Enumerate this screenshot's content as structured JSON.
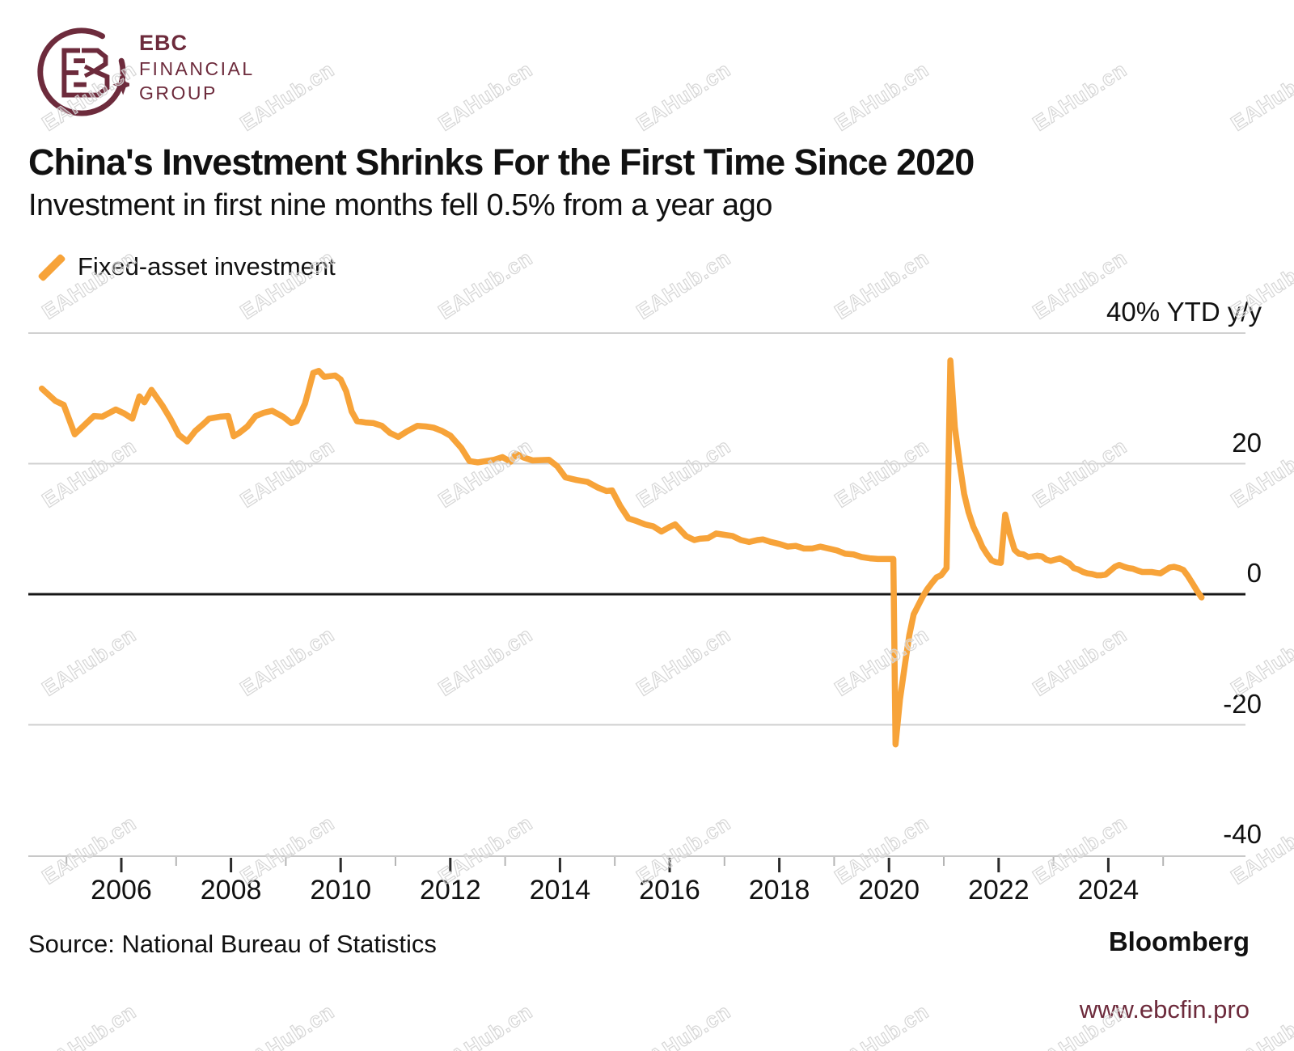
{
  "logo": {
    "line1": "EBC",
    "line2": "FINANCIAL",
    "line3": "GROUP"
  },
  "header": {
    "title": "China's Investment Shrinks For the First Time Since 2020",
    "subtitle": "Investment in first nine months fell 0.5% from a year ago"
  },
  "legend": {
    "label": "Fixed-asset investment"
  },
  "footer": {
    "source": "Source: National Bureau of Statistics",
    "brand": "Bloomberg",
    "website": "www.ebcfin.pro"
  },
  "watermark": {
    "text": "EAHub.cn"
  },
  "colors": {
    "line": "#F7A339",
    "maroon": "#6D2B3C",
    "grid": "#D0D0D0",
    "zero_line": "#161616",
    "axis": "#C8C8C8",
    "tick_major": "#2B2B2B",
    "tick_minor": "#B5B5B5",
    "text": "#111111",
    "watermark": "#D4D4D4"
  },
  "chart_data": {
    "type": "line",
    "title": "China's Investment Shrinks For the First Time Since 2020",
    "subtitle": "Investment in first nine months fell 0.5% from a year ago",
    "ylabel": "% YTD y/y",
    "xlabel": "",
    "x_range": [
      2004.5,
      2025.9
    ],
    "ylim": [
      -40,
      40
    ],
    "grid": "horizontal",
    "legend_position": "top-left",
    "y_ticks": [
      {
        "value": 40,
        "label": "40% YTD y/y"
      },
      {
        "value": 20,
        "label": "20"
      },
      {
        "value": 0,
        "label": "0"
      },
      {
        "value": -20,
        "label": "-20"
      },
      {
        "value": -40,
        "label": "-40"
      }
    ],
    "x_ticks_major": [
      {
        "year": 2006,
        "label": "2006"
      },
      {
        "year": 2008,
        "label": "2008"
      },
      {
        "year": 2010,
        "label": "2010"
      },
      {
        "year": 2012,
        "label": "2012"
      },
      {
        "year": 2014,
        "label": "2014"
      },
      {
        "year": 2016,
        "label": "2016"
      },
      {
        "year": 2018,
        "label": "2018"
      },
      {
        "year": 2020,
        "label": "2020"
      },
      {
        "year": 2022,
        "label": "2022"
      },
      {
        "year": 2024,
        "label": "2024"
      }
    ],
    "x_ticks_minor": [
      2005,
      2007,
      2009,
      2011,
      2013,
      2015,
      2017,
      2019,
      2021,
      2023,
      2025
    ],
    "series": [
      {
        "name": "Fixed-asset investment",
        "color": "#F7A339",
        "points": [
          [
            2004.55,
            31.5
          ],
          [
            2004.8,
            29.6
          ],
          [
            2004.95,
            29.0
          ],
          [
            2005.15,
            24.5
          ],
          [
            2005.5,
            27.3
          ],
          [
            2005.65,
            27.2
          ],
          [
            2005.9,
            28.3
          ],
          [
            2006.05,
            27.7
          ],
          [
            2006.2,
            26.9
          ],
          [
            2006.33,
            30.3
          ],
          [
            2006.42,
            29.4
          ],
          [
            2006.55,
            31.3
          ],
          [
            2006.75,
            28.9
          ],
          [
            2006.9,
            26.8
          ],
          [
            2007.05,
            24.4
          ],
          [
            2007.2,
            23.4
          ],
          [
            2007.35,
            25.0
          ],
          [
            2007.5,
            26.1
          ],
          [
            2007.6,
            26.9
          ],
          [
            2007.8,
            27.2
          ],
          [
            2007.95,
            27.3
          ],
          [
            2008.05,
            24.2
          ],
          [
            2008.15,
            24.7
          ],
          [
            2008.3,
            25.7
          ],
          [
            2008.45,
            27.3
          ],
          [
            2008.6,
            27.8
          ],
          [
            2008.75,
            28.1
          ],
          [
            2008.95,
            27.2
          ],
          [
            2009.1,
            26.2
          ],
          [
            2009.2,
            26.5
          ],
          [
            2009.35,
            29.2
          ],
          [
            2009.5,
            33.9
          ],
          [
            2009.6,
            34.2
          ],
          [
            2009.7,
            33.3
          ],
          [
            2009.8,
            33.4
          ],
          [
            2009.9,
            33.5
          ],
          [
            2010.0,
            32.9
          ],
          [
            2010.1,
            31.1
          ],
          [
            2010.2,
            28.0
          ],
          [
            2010.3,
            26.5
          ],
          [
            2010.45,
            26.3
          ],
          [
            2010.6,
            26.2
          ],
          [
            2010.75,
            25.8
          ],
          [
            2010.9,
            24.7
          ],
          [
            2011.05,
            24.1
          ],
          [
            2011.2,
            24.9
          ],
          [
            2011.4,
            25.8
          ],
          [
            2011.55,
            25.7
          ],
          [
            2011.7,
            25.5
          ],
          [
            2011.85,
            25.0
          ],
          [
            2012.0,
            24.3
          ],
          [
            2012.2,
            22.4
          ],
          [
            2012.35,
            20.4
          ],
          [
            2012.5,
            20.2
          ],
          [
            2012.65,
            20.4
          ],
          [
            2012.8,
            20.6
          ],
          [
            2012.95,
            21.0
          ],
          [
            2013.1,
            20.3
          ],
          [
            2013.2,
            21.5
          ],
          [
            2013.35,
            20.9
          ],
          [
            2013.5,
            20.5
          ],
          [
            2013.8,
            20.6
          ],
          [
            2013.95,
            19.6
          ],
          [
            2014.1,
            17.9
          ],
          [
            2014.3,
            17.5
          ],
          [
            2014.5,
            17.2
          ],
          [
            2014.7,
            16.3
          ],
          [
            2014.85,
            15.8
          ],
          [
            2014.95,
            15.9
          ],
          [
            2015.1,
            13.5
          ],
          [
            2015.25,
            11.6
          ],
          [
            2015.4,
            11.2
          ],
          [
            2015.55,
            10.7
          ],
          [
            2015.7,
            10.4
          ],
          [
            2015.85,
            9.6
          ],
          [
            2016.0,
            10.3
          ],
          [
            2016.1,
            10.7
          ],
          [
            2016.2,
            9.8
          ],
          [
            2016.3,
            8.9
          ],
          [
            2016.45,
            8.3
          ],
          [
            2016.55,
            8.5
          ],
          [
            2016.7,
            8.6
          ],
          [
            2016.85,
            9.3
          ],
          [
            2017.0,
            9.1
          ],
          [
            2017.15,
            8.9
          ],
          [
            2017.3,
            8.3
          ],
          [
            2017.45,
            8.0
          ],
          [
            2017.6,
            8.3
          ],
          [
            2017.7,
            8.4
          ],
          [
            2017.85,
            8.0
          ],
          [
            2018.0,
            7.7
          ],
          [
            2018.15,
            7.3
          ],
          [
            2018.3,
            7.4
          ],
          [
            2018.45,
            7.0
          ],
          [
            2018.6,
            7.0
          ],
          [
            2018.75,
            7.3
          ],
          [
            2018.9,
            7.0
          ],
          [
            2019.05,
            6.7
          ],
          [
            2019.2,
            6.2
          ],
          [
            2019.35,
            6.1
          ],
          [
            2019.5,
            5.7
          ],
          [
            2019.65,
            5.5
          ],
          [
            2019.8,
            5.4
          ],
          [
            2019.97,
            5.4
          ],
          [
            2020.08,
            5.4
          ],
          [
            2020.12,
            -23.0
          ],
          [
            2020.2,
            -16.1
          ],
          [
            2020.3,
            -10.3
          ],
          [
            2020.37,
            -6.3
          ],
          [
            2020.45,
            -3.1
          ],
          [
            2020.54,
            -1.6
          ],
          [
            2020.62,
            -0.3
          ],
          [
            2020.7,
            0.8
          ],
          [
            2020.79,
            1.8
          ],
          [
            2020.87,
            2.6
          ],
          [
            2020.95,
            2.9
          ],
          [
            2021.05,
            4.0
          ],
          [
            2021.12,
            35.8
          ],
          [
            2021.2,
            25.6
          ],
          [
            2021.29,
            19.9
          ],
          [
            2021.37,
            15.4
          ],
          [
            2021.45,
            12.6
          ],
          [
            2021.54,
            10.3
          ],
          [
            2021.62,
            8.9
          ],
          [
            2021.7,
            7.3
          ],
          [
            2021.79,
            6.1
          ],
          [
            2021.87,
            5.2
          ],
          [
            2021.95,
            4.9
          ],
          [
            2022.04,
            4.8
          ],
          [
            2022.12,
            12.2
          ],
          [
            2022.2,
            9.3
          ],
          [
            2022.29,
            6.8
          ],
          [
            2022.37,
            6.2
          ],
          [
            2022.45,
            6.1
          ],
          [
            2022.54,
            5.7
          ],
          [
            2022.62,
            5.8
          ],
          [
            2022.7,
            5.9
          ],
          [
            2022.79,
            5.8
          ],
          [
            2022.87,
            5.3
          ],
          [
            2022.95,
            5.1
          ],
          [
            2023.12,
            5.5
          ],
          [
            2023.2,
            5.1
          ],
          [
            2023.29,
            4.7
          ],
          [
            2023.37,
            4.0
          ],
          [
            2023.45,
            3.8
          ],
          [
            2023.54,
            3.4
          ],
          [
            2023.62,
            3.2
          ],
          [
            2023.7,
            3.1
          ],
          [
            2023.79,
            2.9
          ],
          [
            2023.87,
            2.9
          ],
          [
            2023.95,
            3.0
          ],
          [
            2024.12,
            4.2
          ],
          [
            2024.2,
            4.5
          ],
          [
            2024.29,
            4.2
          ],
          [
            2024.37,
            4.0
          ],
          [
            2024.45,
            3.9
          ],
          [
            2024.54,
            3.6
          ],
          [
            2024.62,
            3.4
          ],
          [
            2024.7,
            3.4
          ],
          [
            2024.79,
            3.4
          ],
          [
            2024.87,
            3.3
          ],
          [
            2024.95,
            3.2
          ],
          [
            2025.12,
            4.1
          ],
          [
            2025.2,
            4.2
          ],
          [
            2025.29,
            4.0
          ],
          [
            2025.37,
            3.7
          ],
          [
            2025.45,
            2.8
          ],
          [
            2025.54,
            1.6
          ],
          [
            2025.62,
            0.5
          ],
          [
            2025.7,
            -0.5
          ]
        ]
      }
    ]
  }
}
